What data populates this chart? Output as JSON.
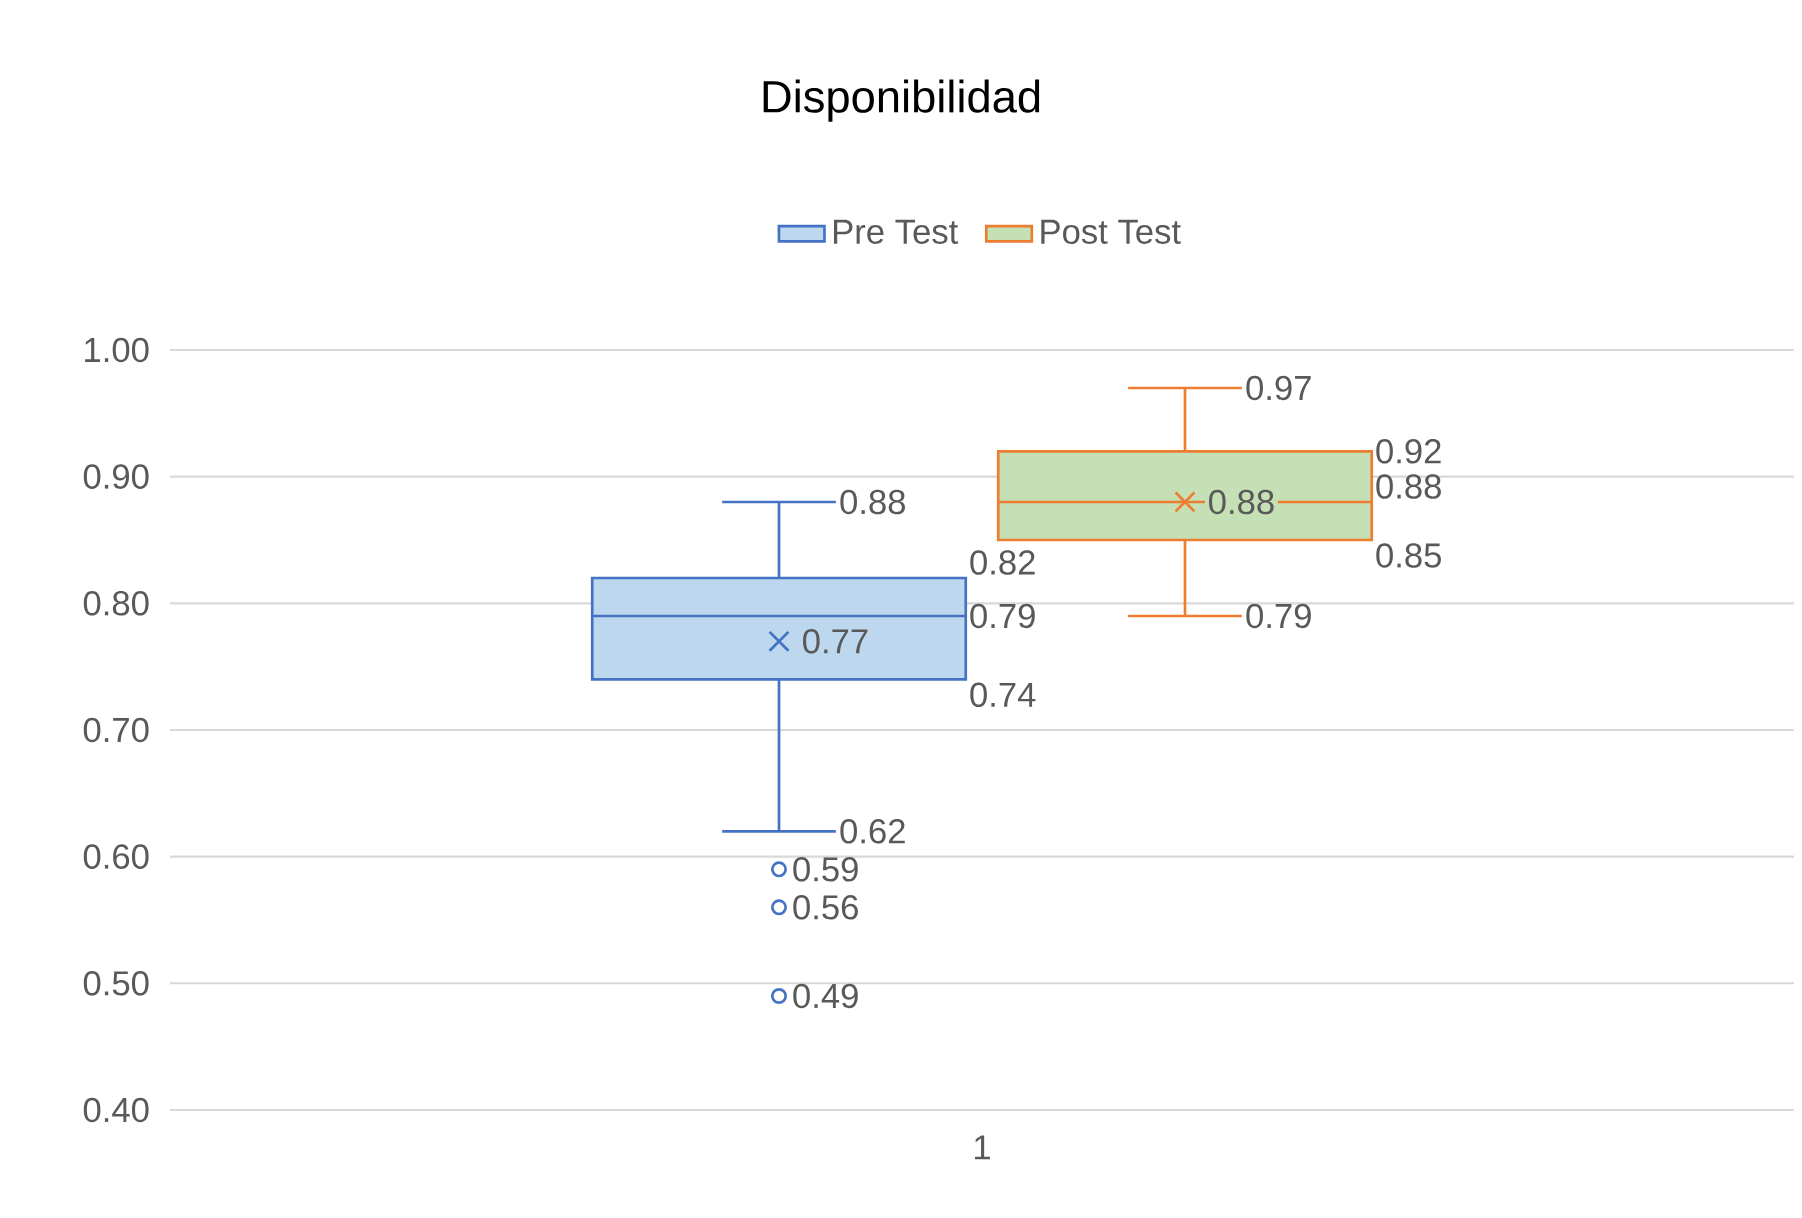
{
  "chart_data": {
    "type": "box",
    "title": "Disponibilidad",
    "categories": [
      "1"
    ],
    "series": [
      {
        "name": "Pre Test",
        "color": "#4472c4",
        "colors": [
          "#bdd7ee"
        ],
        "boxes": [
          {
            "low": 0.62,
            "q1": 0.74,
            "median": 0.79,
            "q3": 0.82,
            "high": 0.88,
            "mean": 0.77,
            "outliers": [
              0.59,
              0.56,
              0.49
            ]
          }
        ]
      },
      {
        "name": "Post Test",
        "color": "#ed7d31",
        "colors": [
          "#c5e0b4"
        ],
        "boxes": [
          {
            "low": 0.79,
            "q1": 0.85,
            "median": 0.88,
            "q3": 0.92,
            "high": 0.97,
            "mean": 0.88
          }
        ]
      }
    ],
    "ylim": [
      0.4,
      1.0
    ],
    "yticks": [
      {
        "value": 0.4,
        "label": "0.40"
      },
      {
        "value": 0.5,
        "label": "0.50"
      },
      {
        "value": 0.6,
        "label": "0.60"
      },
      {
        "value": 0.7,
        "label": "0.70"
      },
      {
        "value": 0.8,
        "label": "0.80"
      },
      {
        "value": 0.9,
        "label": "0.90"
      },
      {
        "value": 1.0,
        "label": "1.00"
      }
    ],
    "grid": "y",
    "legend": "top",
    "data_labels": true,
    "annotations": [
      "0.88",
      "0.82",
      "0.79",
      "0.77",
      "0.74",
      "0.62",
      "0.59",
      "0.56",
      "0.49",
      "0.97",
      "0.92",
      "0.88",
      "0.88",
      "0.85",
      "0.79"
    ]
  }
}
